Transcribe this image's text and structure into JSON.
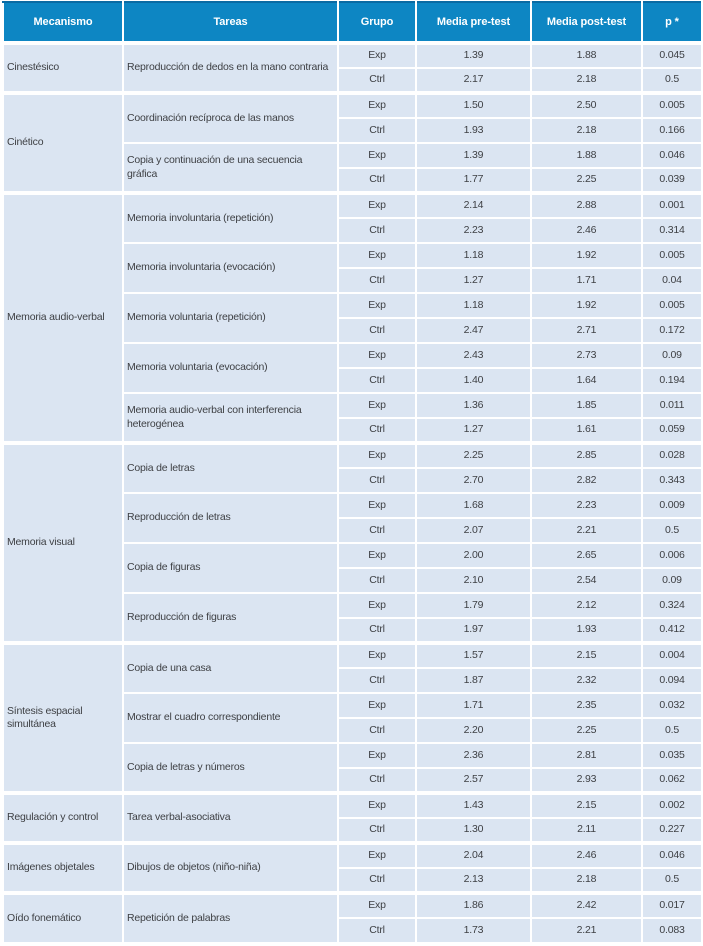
{
  "colors": {
    "header_bg": "#0d86c3",
    "header_text": "#ffffff",
    "cell_bg": "#dbe5f2",
    "cell_text": "#3e4044",
    "grid": "#ffffff"
  },
  "table": {
    "headers": [
      "Mecanismo",
      "Tareas",
      "Grupo",
      "Media pre-test",
      "Media post-test",
      "p *"
    ],
    "sections": [
      {
        "mechanism": "Cinestésico",
        "tasks": [
          {
            "name": "Reproducción de dedos en la mano contraria",
            "rows": [
              {
                "group": "Exp",
                "pre": "1.39",
                "post": "1.88",
                "p": "0.045"
              },
              {
                "group": "Ctrl",
                "pre": "2.17",
                "post": "2.18",
                "p": "0.5"
              }
            ]
          }
        ]
      },
      {
        "mechanism": "Cinético",
        "tasks": [
          {
            "name": "Coordinación recíproca de las manos",
            "rows": [
              {
                "group": "Exp",
                "pre": "1.50",
                "post": "2.50",
                "p": "0.005"
              },
              {
                "group": "Ctrl",
                "pre": "1.93",
                "post": "2.18",
                "p": "0.166"
              }
            ]
          },
          {
            "name": "Copia y continuación de una secuencia gráfica",
            "rows": [
              {
                "group": "Exp",
                "pre": "1.39",
                "post": "1.88",
                "p": "0.046"
              },
              {
                "group": "Ctrl",
                "pre": "1.77",
                "post": "2.25",
                "p": "0.039"
              }
            ]
          }
        ]
      },
      {
        "mechanism": "Memoria audio-verbal",
        "tasks": [
          {
            "name": "Memoria involuntaria (repetición)",
            "rows": [
              {
                "group": "Exp",
                "pre": "2.14",
                "post": "2.88",
                "p": "0.001"
              },
              {
                "group": "Ctrl",
                "pre": "2.23",
                "post": "2.46",
                "p": "0.314"
              }
            ]
          },
          {
            "name": "Memoria involuntaria (evocación)",
            "rows": [
              {
                "group": "Exp",
                "pre": "1.18",
                "post": "1.92",
                "p": "0.005"
              },
              {
                "group": "Ctrl",
                "pre": "1.27",
                "post": "1.71",
                "p": "0.04"
              }
            ]
          },
          {
            "name": "Memoria voluntaria (repetición)",
            "rows": [
              {
                "group": "Exp",
                "pre": "1.18",
                "post": "1.92",
                "p": "0.005"
              },
              {
                "group": "Ctrl",
                "pre": "2.47",
                "post": "2.71",
                "p": "0.172"
              }
            ]
          },
          {
            "name": "Memoria voluntaria (evocación)",
            "rows": [
              {
                "group": "Exp",
                "pre": "2.43",
                "post": "2.73",
                "p": "0.09"
              },
              {
                "group": "Ctrl",
                "pre": "1.40",
                "post": "1.64",
                "p": "0.194"
              }
            ]
          },
          {
            "name": "Memoria audio-verbal con interferencia heterogénea",
            "rows": [
              {
                "group": "Exp",
                "pre": "1.36",
                "post": "1.85",
                "p": "0.011"
              },
              {
                "group": "Ctrl",
                "pre": "1.27",
                "post": "1.61",
                "p": "0.059"
              }
            ]
          }
        ]
      },
      {
        "mechanism": "Memoria visual",
        "tasks": [
          {
            "name": "Copia de letras",
            "rows": [
              {
                "group": "Exp",
                "pre": "2.25",
                "post": "2.85",
                "p": "0.028"
              },
              {
                "group": "Ctrl",
                "pre": "2.70",
                "post": "2.82",
                "p": "0.343"
              }
            ]
          },
          {
            "name": "Reproducción de letras",
            "rows": [
              {
                "group": "Exp",
                "pre": "1.68",
                "post": "2.23",
                "p": "0.009"
              },
              {
                "group": "Ctrl",
                "pre": "2.07",
                "post": "2.21",
                "p": "0.5"
              }
            ]
          },
          {
            "name": "Copia de figuras",
            "rows": [
              {
                "group": "Exp",
                "pre": "2.00",
                "post": "2.65",
                "p": "0.006"
              },
              {
                "group": "Ctrl",
                "pre": "2.10",
                "post": "2.54",
                "p": "0.09"
              }
            ]
          },
          {
            "name": "Reproducción de figuras",
            "rows": [
              {
                "group": "Exp",
                "pre": "1.79",
                "post": "2.12",
                "p": "0.324"
              },
              {
                "group": "Ctrl",
                "pre": "1.97",
                "post": "1.93",
                "p": "0.412"
              }
            ]
          }
        ]
      },
      {
        "mechanism": "Síntesis espacial simultánea",
        "tasks": [
          {
            "name": "Copia de una casa",
            "rows": [
              {
                "group": "Exp",
                "pre": "1.57",
                "post": "2.15",
                "p": "0.004"
              },
              {
                "group": "Ctrl",
                "pre": "1.87",
                "post": "2.32",
                "p": "0.094"
              }
            ]
          },
          {
            "name": "Mostrar el cuadro correspondiente",
            "rows": [
              {
                "group": "Exp",
                "pre": "1.71",
                "post": "2.35",
                "p": "0.032"
              },
              {
                "group": "Ctrl",
                "pre": "2.20",
                "post": "2.25",
                "p": "0.5"
              }
            ]
          },
          {
            "name": "Copia de letras y números",
            "rows": [
              {
                "group": "Exp",
                "pre": "2.36",
                "post": "2.81",
                "p": "0.035"
              },
              {
                "group": "Ctrl",
                "pre": "2.57",
                "post": "2.93",
                "p": "0.062"
              }
            ]
          }
        ]
      },
      {
        "mechanism": "Regulación y control",
        "tasks": [
          {
            "name": "Tarea verbal-asociativa",
            "rows": [
              {
                "group": "Exp",
                "pre": "1.43",
                "post": "2.15",
                "p": "0.002"
              },
              {
                "group": "Ctrl",
                "pre": "1.30",
                "post": "2.11",
                "p": "0.227"
              }
            ]
          }
        ]
      },
      {
        "mechanism": "Imágenes objetales",
        "tasks": [
          {
            "name": "Dibujos de objetos (niño-niña)",
            "rows": [
              {
                "group": "Exp",
                "pre": "2.04",
                "post": "2.46",
                "p": "0.046"
              },
              {
                "group": "Ctrl",
                "pre": "2.13",
                "post": "2.18",
                "p": "0.5"
              }
            ]
          }
        ]
      },
      {
        "mechanism": "Oído fonemático",
        "tasks": [
          {
            "name": "Repetición de palabras",
            "rows": [
              {
                "group": "Exp",
                "pre": "1.86",
                "post": "2.42",
                "p": "0.017"
              },
              {
                "group": "Ctrl",
                "pre": "1.73",
                "post": "2.21",
                "p": "0.083"
              }
            ]
          }
        ]
      }
    ]
  }
}
